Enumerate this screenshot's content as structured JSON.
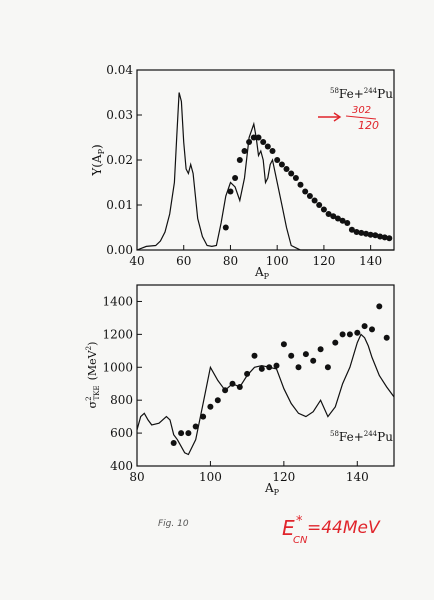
{
  "figure_caption": "Fig. 10",
  "handwritten_energy": {
    "prefix": "E",
    "sub": "CN",
    "sup": "*",
    "suffix": "=44MeV"
  },
  "handwritten_note": {
    "arrow": "→",
    "numer": "302",
    "denom": "120"
  },
  "colors": {
    "ink": "#111111",
    "handwriting_red": "#e0242b",
    "paper": "#f7f7f5"
  },
  "chart_data": [
    {
      "type": "line",
      "ylabel": "Y(A_P)",
      "xlabel": "A_P",
      "legend": "58Fe+244Pu",
      "legend_parts": [
        "58",
        "Fe+",
        "244",
        "Pu"
      ],
      "xlim": [
        40,
        150
      ],
      "ylim": [
        0,
        0.04
      ],
      "x_ticks": [
        40,
        60,
        80,
        100,
        120,
        140
      ],
      "y_ticks": [
        "0.00",
        "0.01",
        "0.02",
        "0.03",
        "0.04"
      ],
      "series": [
        {
          "style": "line",
          "x": [
            40,
            44,
            48,
            50,
            52,
            54,
            56,
            57,
            58,
            59,
            60,
            61,
            62,
            63,
            64,
            65,
            66,
            68,
            70,
            72,
            74,
            76,
            78,
            80,
            82,
            84,
            86,
            88,
            90,
            91,
            92,
            93,
            94,
            95,
            96,
            97,
            98,
            100,
            102,
            104,
            106,
            108,
            110,
            115,
            120,
            130,
            140,
            150
          ],
          "values": [
            0.0,
            0.0008,
            0.001,
            0.002,
            0.004,
            0.008,
            0.015,
            0.025,
            0.035,
            0.033,
            0.024,
            0.018,
            0.017,
            0.019,
            0.017,
            0.012,
            0.007,
            0.003,
            0.001,
            0.0008,
            0.001,
            0.006,
            0.012,
            0.015,
            0.014,
            0.011,
            0.016,
            0.025,
            0.028,
            0.025,
            0.021,
            0.022,
            0.02,
            0.015,
            0.016,
            0.019,
            0.02,
            0.015,
            0.01,
            0.005,
            0.001,
            0.0005,
            0.0,
            0.0,
            0.0,
            0.0,
            0.0,
            0.0
          ]
        },
        {
          "style": "points",
          "x": [
            78,
            80,
            82,
            84,
            86,
            88,
            90,
            92,
            94,
            96,
            98,
            100,
            102,
            104,
            106,
            108,
            110,
            112,
            114,
            116,
            118,
            120,
            122,
            124,
            126,
            128,
            130,
            132,
            134,
            136,
            138,
            140,
            142,
            144,
            146,
            148
          ],
          "values": [
            0.005,
            0.013,
            0.016,
            0.02,
            0.022,
            0.024,
            0.025,
            0.025,
            0.024,
            0.023,
            0.022,
            0.02,
            0.019,
            0.018,
            0.017,
            0.016,
            0.0145,
            0.013,
            0.012,
            0.011,
            0.01,
            0.009,
            0.008,
            0.0075,
            0.007,
            0.0065,
            0.006,
            0.0045,
            0.004,
            0.0038,
            0.0036,
            0.0034,
            0.0033,
            0.003,
            0.0028,
            0.0026
          ]
        }
      ]
    },
    {
      "type": "line",
      "ylabel": "σ²TKE (MeV²)",
      "ylabel_parts": [
        "σ",
        "2",
        "TKE",
        "(MeV",
        "2",
        ")"
      ],
      "xlabel": "A_P",
      "legend": "58Fe+244Pu",
      "legend_parts": [
        "58",
        "Fe+",
        "244",
        "Pu"
      ],
      "xlim": [
        80,
        150
      ],
      "ylim": [
        400,
        1500
      ],
      "x_ticks": [
        80,
        100,
        120,
        140
      ],
      "y_ticks": [
        400,
        600,
        800,
        1000,
        1200,
        1400
      ],
      "series": [
        {
          "style": "line",
          "x": [
            80,
            81,
            82,
            83,
            84,
            86,
            88,
            89,
            90,
            91,
            92,
            93,
            94,
            96,
            98,
            100,
            102,
            104,
            106,
            108,
            110,
            112,
            114,
            116,
            118,
            120,
            122,
            124,
            126,
            128,
            130,
            132,
            134,
            136,
            138,
            140,
            141,
            142,
            143,
            144,
            146,
            148,
            150
          ],
          "values": [
            620,
            700,
            720,
            680,
            650,
            660,
            700,
            680,
            590,
            560,
            520,
            480,
            470,
            560,
            780,
            1000,
            920,
            860,
            900,
            880,
            950,
            1000,
            1010,
            1000,
            990,
            870,
            780,
            720,
            700,
            730,
            800,
            700,
            760,
            900,
            1000,
            1150,
            1200,
            1180,
            1130,
            1060,
            950,
            880,
            820
          ]
        },
        {
          "style": "points",
          "x": [
            90,
            92,
            94,
            96,
            98,
            100,
            102,
            104,
            106,
            108,
            110,
            112,
            114,
            116,
            118,
            120,
            122,
            124,
            126,
            128,
            130,
            132,
            134,
            136,
            138,
            140,
            142,
            144,
            146,
            148
          ],
          "values": [
            540,
            600,
            600,
            640,
            700,
            760,
            800,
            860,
            900,
            880,
            960,
            1070,
            990,
            1000,
            1010,
            1140,
            1070,
            1000,
            1080,
            1040,
            1110,
            1000,
            1150,
            1200,
            1200,
            1210,
            1250,
            1230,
            1370,
            1180
          ]
        }
      ]
    }
  ]
}
